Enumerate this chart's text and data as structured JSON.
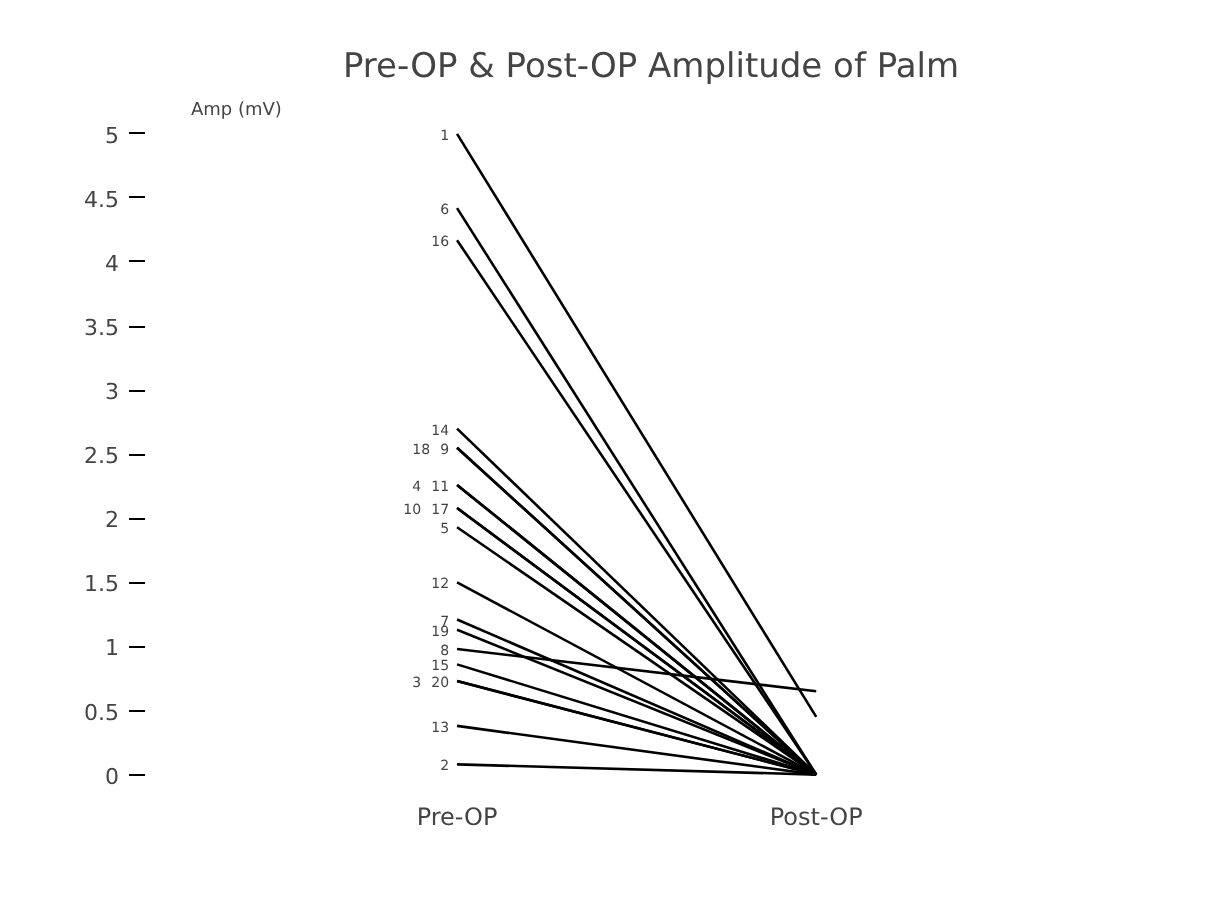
{
  "chart_data": {
    "type": "line",
    "title": "Pre-OP & Post-OP Amplitude of Palm",
    "ylabel": "Amp (mV)",
    "categories": [
      "Pre-OP",
      "Post-OP"
    ],
    "ylim": [
      0,
      5
    ],
    "yticks": [
      0,
      0.5,
      1,
      1.5,
      2,
      2.5,
      3,
      3.5,
      4,
      4.5,
      5
    ],
    "grid": false,
    "legend": false,
    "marker": "none",
    "line_style": "solid",
    "series": [
      {
        "name": "1",
        "color": "#000000",
        "values": [
          5.0,
          0.45
        ]
      },
      {
        "name": "6",
        "color": "#000000",
        "values": [
          4.42,
          0
        ]
      },
      {
        "name": "16",
        "color": "#000000",
        "values": [
          4.17,
          0
        ]
      },
      {
        "name": "14",
        "color": "#000000",
        "values": [
          2.7,
          0
        ]
      },
      {
        "name": "18",
        "color": "#000000",
        "values": [
          2.55,
          0
        ]
      },
      {
        "name": "9",
        "color": "#000000",
        "values": [
          2.55,
          0
        ]
      },
      {
        "name": "4",
        "color": "#000000",
        "values": [
          2.26,
          0
        ]
      },
      {
        "name": "11",
        "color": "#000000",
        "values": [
          2.26,
          0
        ]
      },
      {
        "name": "10",
        "color": "#000000",
        "values": [
          2.08,
          0
        ]
      },
      {
        "name": "17",
        "color": "#000000",
        "values": [
          2.08,
          0
        ]
      },
      {
        "name": "5",
        "color": "#000000",
        "values": [
          1.93,
          0
        ]
      },
      {
        "name": "12",
        "color": "#000000",
        "values": [
          1.5,
          0
        ]
      },
      {
        "name": "7",
        "color": "#000000",
        "values": [
          1.21,
          0
        ]
      },
      {
        "name": "19",
        "color": "#000000",
        "values": [
          1.13,
          0
        ]
      },
      {
        "name": "8",
        "color": "#000000",
        "values": [
          0.98,
          0.65
        ]
      },
      {
        "name": "15",
        "color": "#000000",
        "values": [
          0.86,
          0
        ]
      },
      {
        "name": "3",
        "color": "#000000",
        "values": [
          0.73,
          0
        ]
      },
      {
        "name": "20",
        "color": "#000000",
        "values": [
          0.73,
          0
        ]
      },
      {
        "name": "13",
        "color": "#000000",
        "values": [
          0.38,
          0
        ]
      },
      {
        "name": "2",
        "color": "#000000",
        "values": [
          0.08,
          0
        ]
      }
    ]
  }
}
